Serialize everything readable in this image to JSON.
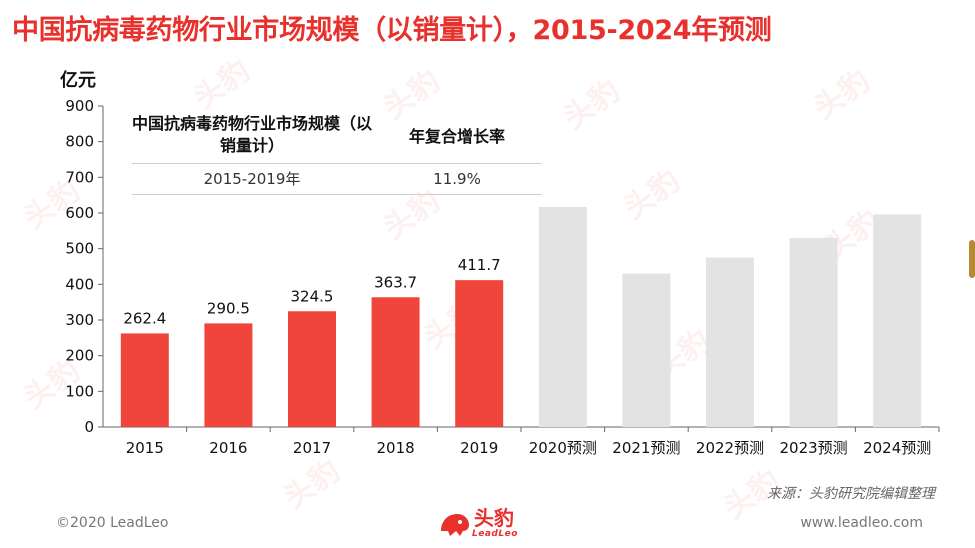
{
  "title": "中国抗病毒药物行业市场规模（以销量计），2015-2024年预测",
  "unit_label": "亿元",
  "summary_table": {
    "col1_header": "中国抗病毒药物行业市场规模（以销量计）",
    "col2_header": "年复合增长率",
    "row_period": "2015-2019年",
    "row_cagr": "11.9%"
  },
  "chart_data": {
    "type": "bar",
    "categories": [
      "2015",
      "2016",
      "2017",
      "2018",
      "2019",
      "2020预测",
      "2021预测",
      "2022预测",
      "2023预测",
      "2024预测"
    ],
    "values": [
      262.4,
      290.5,
      324.5,
      363.7,
      411.7,
      617,
      430,
      475,
      530,
      596
    ],
    "value_labels": [
      "262.4",
      "290.5",
      "324.5",
      "363.7",
      "411.7",
      "",
      "",
      "",
      "",
      ""
    ],
    "forecast": [
      false,
      false,
      false,
      false,
      false,
      true,
      true,
      true,
      true,
      true
    ],
    "ylim": [
      0,
      900
    ],
    "yticks": [
      0,
      100,
      200,
      300,
      400,
      500,
      600,
      700,
      800,
      900
    ],
    "colors": {
      "actual": "#f0453a",
      "forecast": "#e3e3e3"
    },
    "xlabel": "",
    "ylabel": "亿元",
    "title": "中国抗病毒药物行业市场规模（以销量计），2015-2024年预测",
    "grid": false
  },
  "source": "来源：头豹研究院编辑整理",
  "copyright": "©2020 LeadLeo",
  "brand_name": "头豹",
  "brand_sub": "LeadLeo",
  "website": "www.leadleo.com",
  "watermark_text": "头豹",
  "brand_color": "#e8312c"
}
